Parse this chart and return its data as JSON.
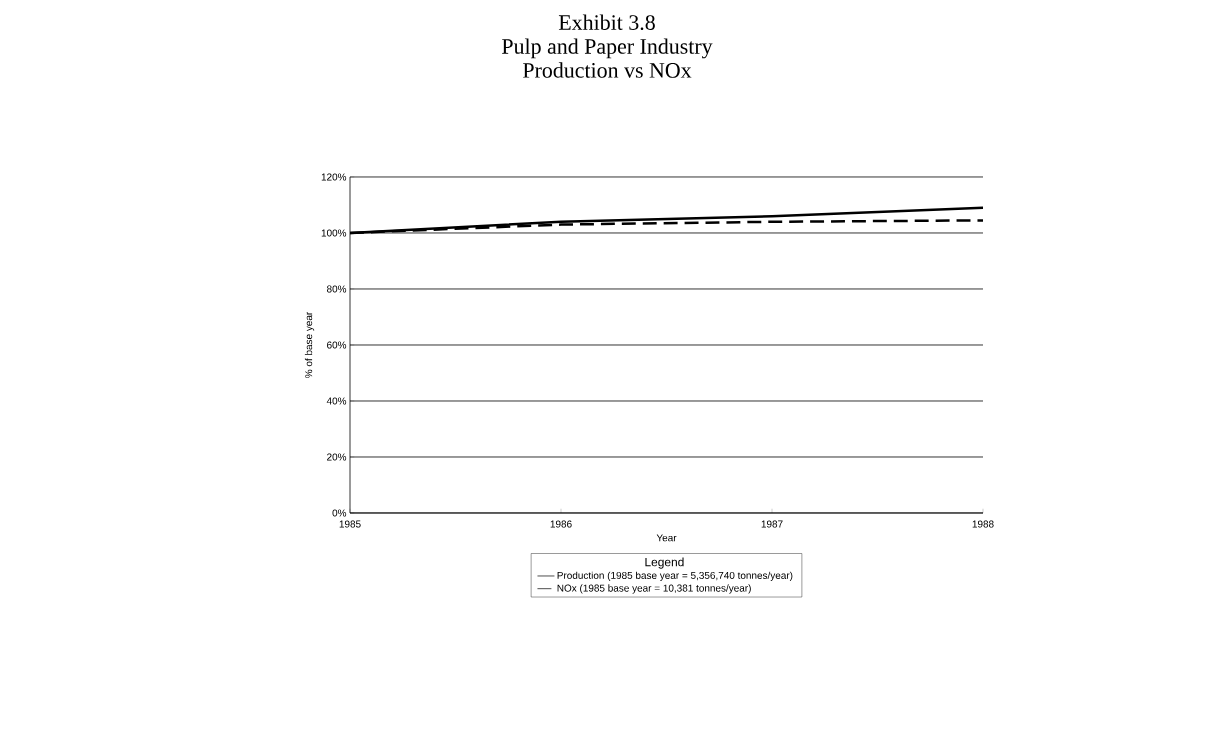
{
  "chart_data": {
    "type": "line",
    "title": "Exhibit 3.8\nPulp and Paper Industry\nProduction vs NOx",
    "xlabel": "Year",
    "ylabel": "% of base year",
    "legend_title": "Legend",
    "x": [
      1985,
      1986,
      1987,
      1988
    ],
    "series": [
      {
        "name": "Production (1985 base year = 5,356,740 tonnes/year)",
        "color": "#000000",
        "line_style": "solid",
        "values": [
          100,
          104,
          106,
          109
        ]
      },
      {
        "name": "NOx (1985 base year = 10,381 tonnes/year)",
        "color": "#000000",
        "line_style": "dashed",
        "values": [
          100,
          103,
          104,
          104.5
        ]
      }
    ],
    "xlim": [
      1985,
      1988
    ],
    "xticks": [
      1985,
      1986,
      1987,
      1988
    ],
    "ylim": [
      0,
      120
    ],
    "yticks": [
      {
        "value": 0,
        "label": "0%"
      },
      {
        "value": 20,
        "label": "20%"
      },
      {
        "value": 40,
        "label": "40%"
      },
      {
        "value": 60,
        "label": "60%"
      },
      {
        "value": 80,
        "label": "80%"
      },
      {
        "value": 100,
        "label": "100%"
      },
      {
        "value": 120,
        "label": "120%"
      }
    ],
    "grid": "y",
    "legend": "bottom",
    "marker": "none"
  }
}
